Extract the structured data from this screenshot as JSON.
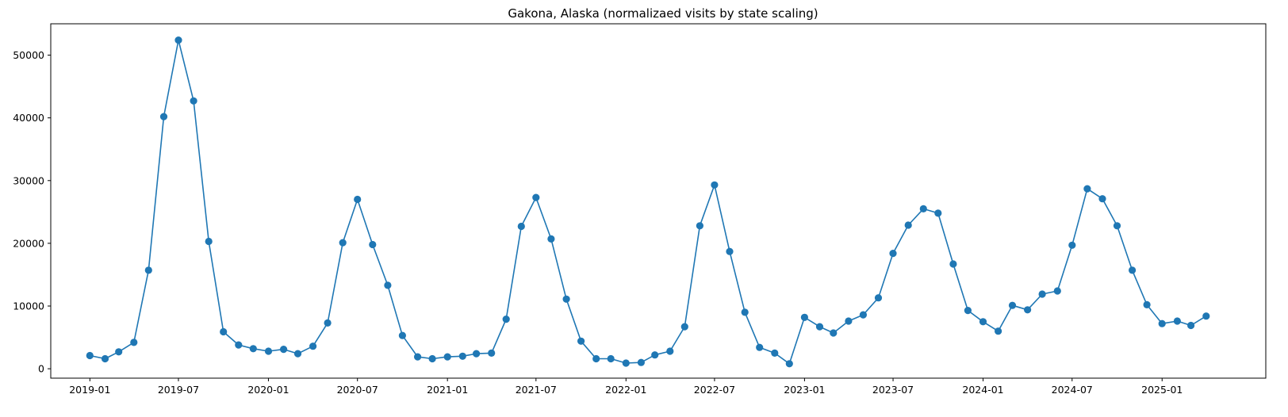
{
  "chart_data": {
    "type": "line",
    "title": "Gakona, Alaska (normalizaed visits by state scaling)",
    "xlabel": "",
    "ylabel": "",
    "x_tick_labels": [
      "2019-01",
      "2019-07",
      "2020-01",
      "2020-07",
      "2021-01",
      "2021-07",
      "2022-01",
      "2022-07",
      "2023-01",
      "2023-07",
      "2024-01",
      "2024-07",
      "2025-01"
    ],
    "y_tick_labels": [
      "0",
      "10000",
      "20000",
      "30000",
      "40000",
      "50000"
    ],
    "y_ticks": [
      0,
      10000,
      20000,
      30000,
      40000,
      50000
    ],
    "ylim": [
      -1500,
      55000
    ],
    "xlim": [
      "2018-10-13",
      "2025-08-01"
    ],
    "grid": false,
    "legend": "none",
    "series": [
      {
        "color": "#1f77b4",
        "marker": "circle",
        "x": [
          "2019-01",
          "2019-02",
          "2019-03",
          "2019-04",
          "2019-05",
          "2019-06",
          "2019-07",
          "2019-08",
          "2019-09",
          "2019-10",
          "2019-11",
          "2019-12",
          "2020-01",
          "2020-02",
          "2020-03",
          "2020-04",
          "2020-05",
          "2020-06",
          "2020-07",
          "2020-08",
          "2020-09",
          "2020-10",
          "2020-11",
          "2020-12",
          "2021-01",
          "2021-02",
          "2021-03",
          "2021-04",
          "2021-05",
          "2021-06",
          "2021-07",
          "2021-08",
          "2021-09",
          "2021-10",
          "2021-11",
          "2021-12",
          "2022-01",
          "2022-02",
          "2022-03",
          "2022-04",
          "2022-05",
          "2022-06",
          "2022-07",
          "2022-08",
          "2022-09",
          "2022-10",
          "2022-11",
          "2022-12",
          "2023-01",
          "2023-02",
          "2023-03",
          "2023-04",
          "2023-05",
          "2023-06",
          "2023-07",
          "2023-08",
          "2023-09",
          "2023-10",
          "2023-11",
          "2023-12",
          "2024-01",
          "2024-02",
          "2024-03",
          "2024-04",
          "2024-05",
          "2024-06",
          "2024-07",
          "2024-08",
          "2024-09",
          "2024-10",
          "2024-11",
          "2024-12",
          "2025-01",
          "2025-02",
          "2025-03",
          "2025-04"
        ],
        "values": [
          2100,
          1600,
          2700,
          4200,
          15700,
          40200,
          52400,
          42700,
          20300,
          5900,
          3800,
          3200,
          2800,
          3100,
          2400,
          3600,
          7300,
          20100,
          27000,
          19800,
          13300,
          5300,
          1900,
          1600,
          1900,
          2000,
          2400,
          2500,
          7900,
          22700,
          27300,
          20700,
          11100,
          4400,
          1600,
          1600,
          900,
          1000,
          2200,
          2800,
          6700,
          22800,
          29300,
          18700,
          9000,
          3400,
          2500,
          800,
          8200,
          6700,
          5700,
          7600,
          8600,
          11300,
          18400,
          22900,
          25500,
          24800,
          16700,
          9300,
          7500,
          6000,
          10100,
          9400,
          11900,
          12400,
          19700,
          28700,
          27100,
          22800,
          15700,
          10200,
          7200,
          7600,
          6900,
          8400
        ]
      }
    ]
  }
}
